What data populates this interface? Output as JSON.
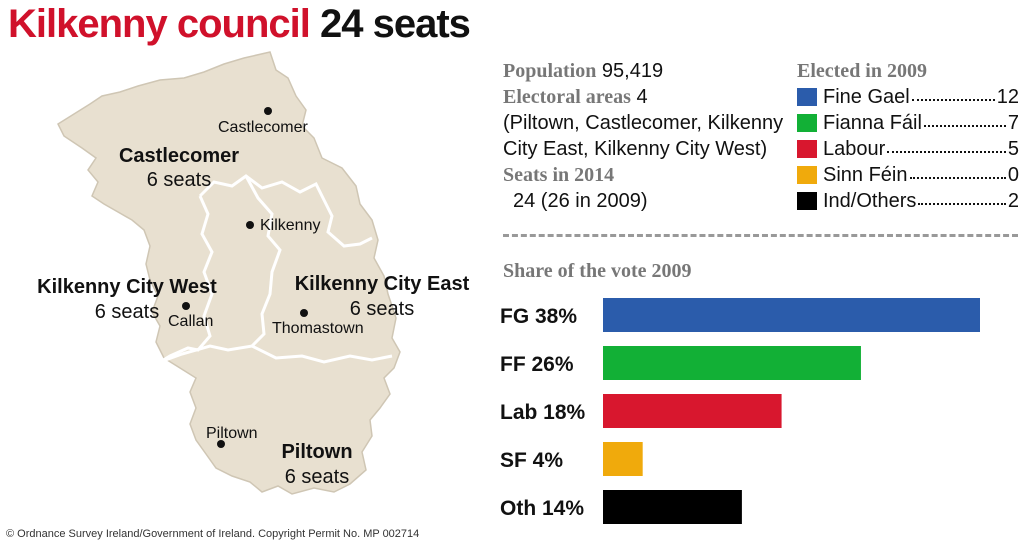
{
  "title": {
    "main": "Kilkenny council",
    "seats": "24 seats"
  },
  "info": {
    "population_label": "Population",
    "population_value": "95,419",
    "areas_label": "Electoral areas",
    "areas_value": "4",
    "areas_line1": "(Piltown, Castlecomer, Kilkenny",
    "areas_line2": "City East, Kilkenny City West)",
    "seats_label": "Seats in 2014",
    "seats_value": "24 (26 in 2009)"
  },
  "legend": {
    "title": "Elected in 2009",
    "items": [
      {
        "name": "Fine Gael",
        "value": "12",
        "color": "#2b5cab"
      },
      {
        "name": "Fianna Fáil",
        "value": "7",
        "color": "#12b036"
      },
      {
        "name": "Labour",
        "value": "5",
        "color": "#d8172e"
      },
      {
        "name": "Sinn Féin",
        "value": "0",
        "color": "#f0aa0c"
      },
      {
        "name": "Ind/Others",
        "value": "2",
        "color": "#000000"
      }
    ]
  },
  "map": {
    "regions": [
      {
        "name": "Castlecomer",
        "seats": "6 seats"
      },
      {
        "name": "Kilkenny City West",
        "seats": "6 seats"
      },
      {
        "name": "Kilkenny City East",
        "seats": "6 seats"
      },
      {
        "name": "Piltown",
        "seats": "6 seats"
      }
    ],
    "towns": [
      "Castlecomer",
      "Kilkenny",
      "Callan",
      "Thomastown",
      "Piltown"
    ]
  },
  "chart_data": {
    "type": "bar",
    "title": "Share of the vote 2009",
    "categories": [
      "FG 38%",
      "FF 26%",
      "Lab 18%",
      "SF 4%",
      "Oth 14%"
    ],
    "values": [
      38,
      26,
      18,
      4,
      14
    ],
    "colors": [
      "#2b5cab",
      "#12b036",
      "#d8172e",
      "#f0aa0c",
      "#000000"
    ]
  },
  "credit": "© Ordnance Survey Ireland/Government of Ireland. Copyright Permit No. MP 002714"
}
